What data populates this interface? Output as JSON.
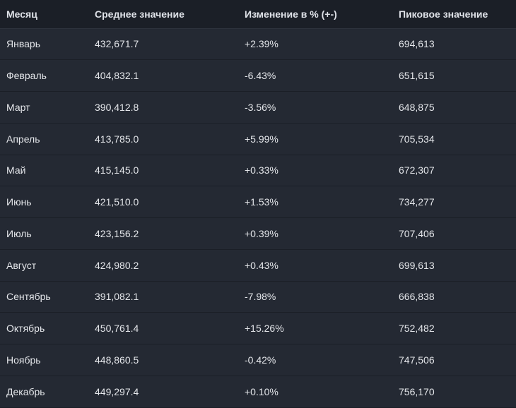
{
  "table": {
    "headers": [
      "Месяц",
      "Среднее значение",
      "Изменение в % (+-)",
      "Пиковое значение"
    ],
    "rows": [
      [
        "Январь",
        "432,671.7",
        "+2.39%",
        "694,613"
      ],
      [
        "Февраль",
        "404,832.1",
        "-6.43%",
        "651,615"
      ],
      [
        "Март",
        "390,412.8",
        "-3.56%",
        "648,875"
      ],
      [
        "Апрель",
        "413,785.0",
        "+5.99%",
        "705,534"
      ],
      [
        "Май",
        "415,145.0",
        "+0.33%",
        "672,307"
      ],
      [
        "Июнь",
        "421,510.0",
        "+1.53%",
        "734,277"
      ],
      [
        "Июль",
        "423,156.2",
        "+0.39%",
        "707,406"
      ],
      [
        "Август",
        "424,980.2",
        "+0.43%",
        "699,613"
      ],
      [
        "Сентябрь",
        "391,082.1",
        "-7.98%",
        "666,838"
      ],
      [
        "Октябрь",
        "450,761.4",
        "+15.26%",
        "752,482"
      ],
      [
        "Ноябрь",
        "448,860.5",
        "-0.42%",
        "747,506"
      ],
      [
        "Декабрь",
        "449,297.4",
        "+0.10%",
        "756,170"
      ]
    ]
  },
  "colors": {
    "background": "#1b1f27",
    "row_background": "#242933",
    "text": "#e4e6ea"
  }
}
